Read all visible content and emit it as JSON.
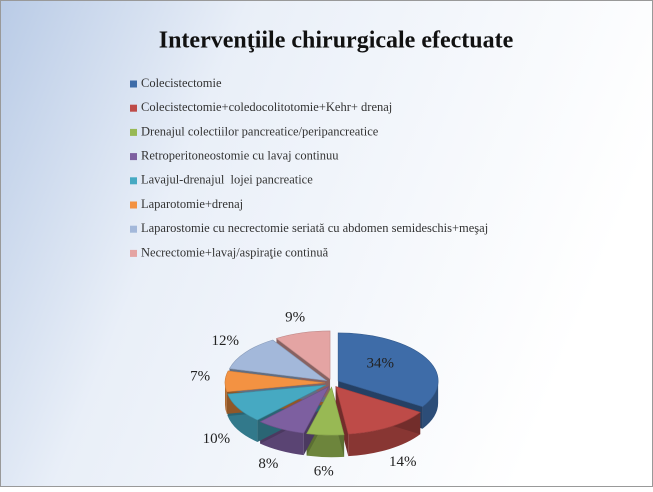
{
  "chart_data": {
    "type": "pie",
    "title": "Intervenţiile chirurgicale efectuate",
    "categories": [
      "Colecistectomie",
      "Colecistectomie+coledocolitotomie+Kehr+ drenaj",
      "Drenajul colectiilor pancreatice/peripancreatice",
      "Retroperitoneostomie cu lavaj continuu",
      "Lavajul-drenajul  lojei pancreatice",
      "Laparotomie+drenaj",
      "Laparostomie cu necrectomie seriată cu abdomen semideschis+meşaj",
      "Necrectomie+lavaj/aspiraţie continuă"
    ],
    "values": [
      34,
      14,
      6,
      8,
      10,
      7,
      12,
      9
    ],
    "value_labels": [
      "34%",
      "14%",
      "6%",
      "8%",
      "10%",
      "7%",
      "12%",
      "9%"
    ],
    "colors": [
      "#3e6ca8",
      "#be4b48",
      "#98b954",
      "#7d5fa0",
      "#46a9c2",
      "#f39242",
      "#a3b8da",
      "#e4a4a3"
    ]
  }
}
